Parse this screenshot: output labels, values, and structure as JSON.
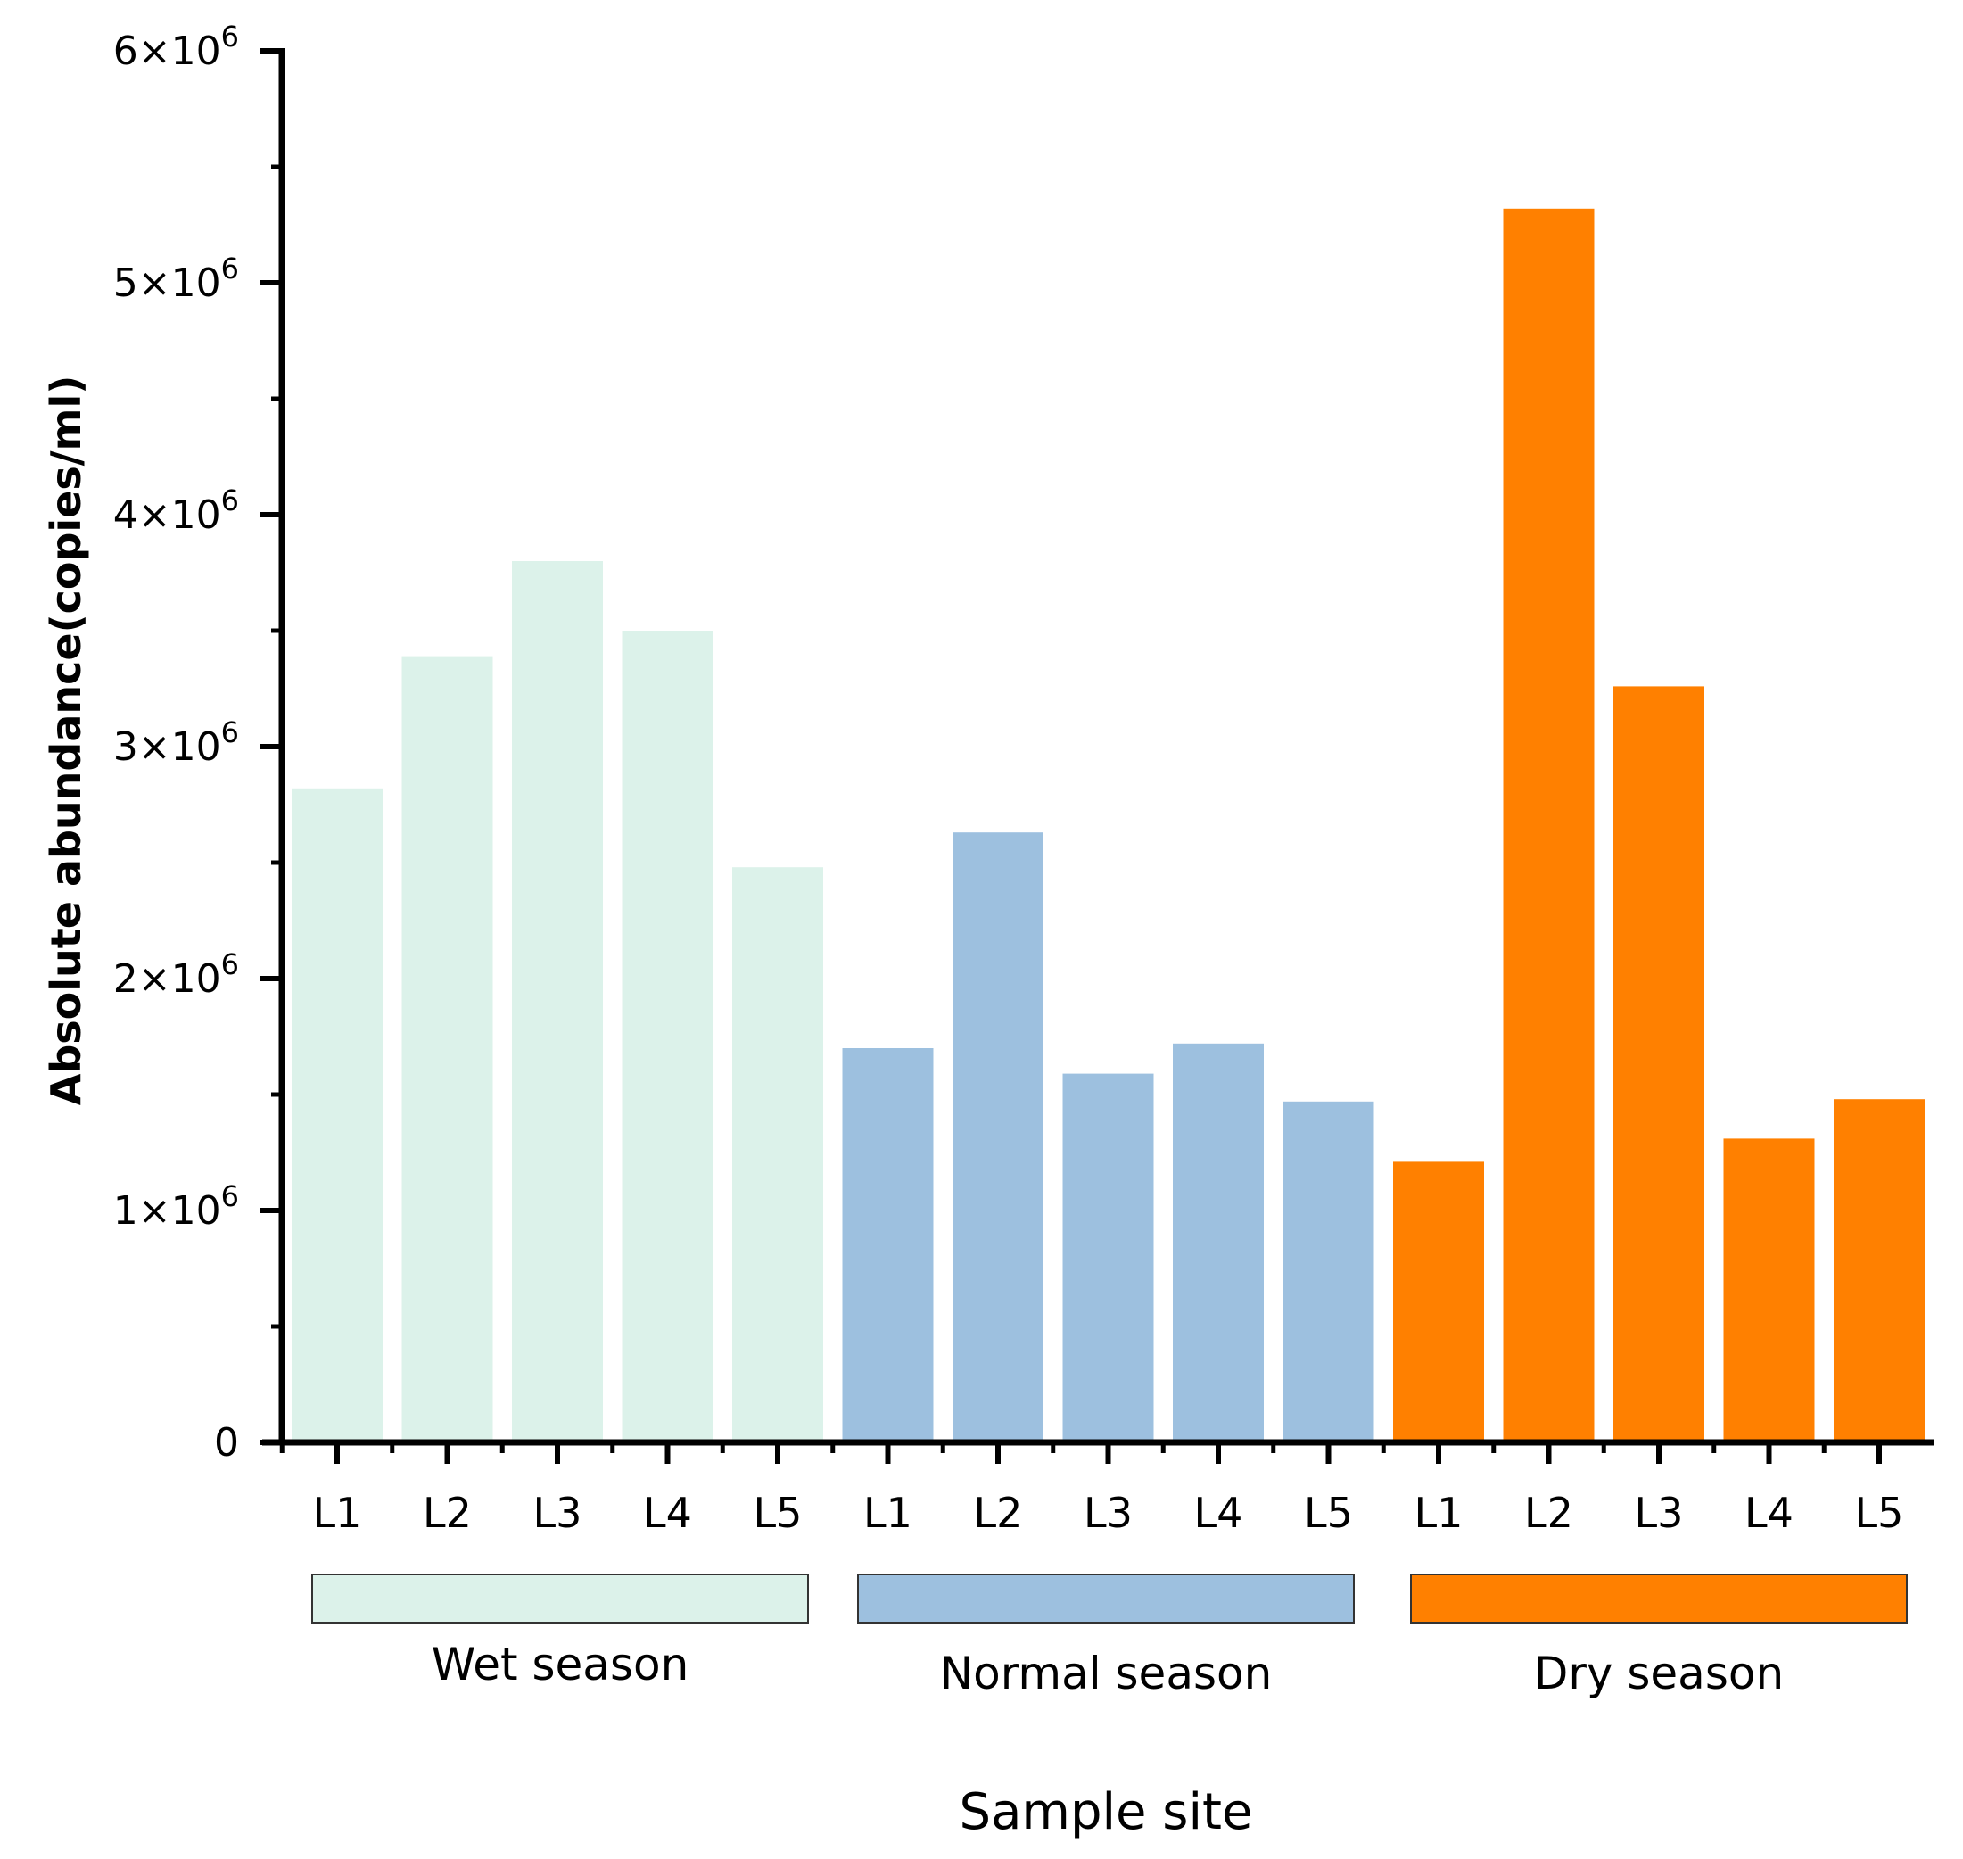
{
  "chart_data": {
    "type": "bar",
    "title": "",
    "xlabel": "Sample site",
    "ylabel": "Absolute abundance(copies/ml)",
    "ylim": [
      0,
      6000000
    ],
    "yticks": [
      {
        "value": 0,
        "label": "0"
      },
      {
        "value": 1000000,
        "label": "1×10",
        "sup": "6"
      },
      {
        "value": 2000000,
        "label": "2×10",
        "sup": "6"
      },
      {
        "value": 3000000,
        "label": "3×10",
        "sup": "6"
      },
      {
        "value": 4000000,
        "label": "4×10",
        "sup": "6"
      },
      {
        "value": 5000000,
        "label": "5×10",
        "sup": "6"
      },
      {
        "value": 6000000,
        "label": "6×10",
        "sup": "6"
      }
    ],
    "groups": [
      {
        "name": "Wet season",
        "color": "#dcf2ea",
        "categories": [
          "L1",
          "L2",
          "L3",
          "L4",
          "L5"
        ],
        "values": [
          2820000,
          3390000,
          3800000,
          3500000,
          2480000
        ]
      },
      {
        "name": "Normal season",
        "color": "#9dc0df",
        "categories": [
          "L1",
          "L2",
          "L3",
          "L4",
          "L5"
        ],
        "values": [
          1700000,
          2630000,
          1590000,
          1720000,
          1470000
        ]
      },
      {
        "name": "Dry season",
        "color": "#ff8000",
        "categories": [
          "L1",
          "L2",
          "L3",
          "L4",
          "L5"
        ],
        "values": [
          1210000,
          5320000,
          3260000,
          1310000,
          1480000
        ]
      }
    ],
    "grid": false
  }
}
